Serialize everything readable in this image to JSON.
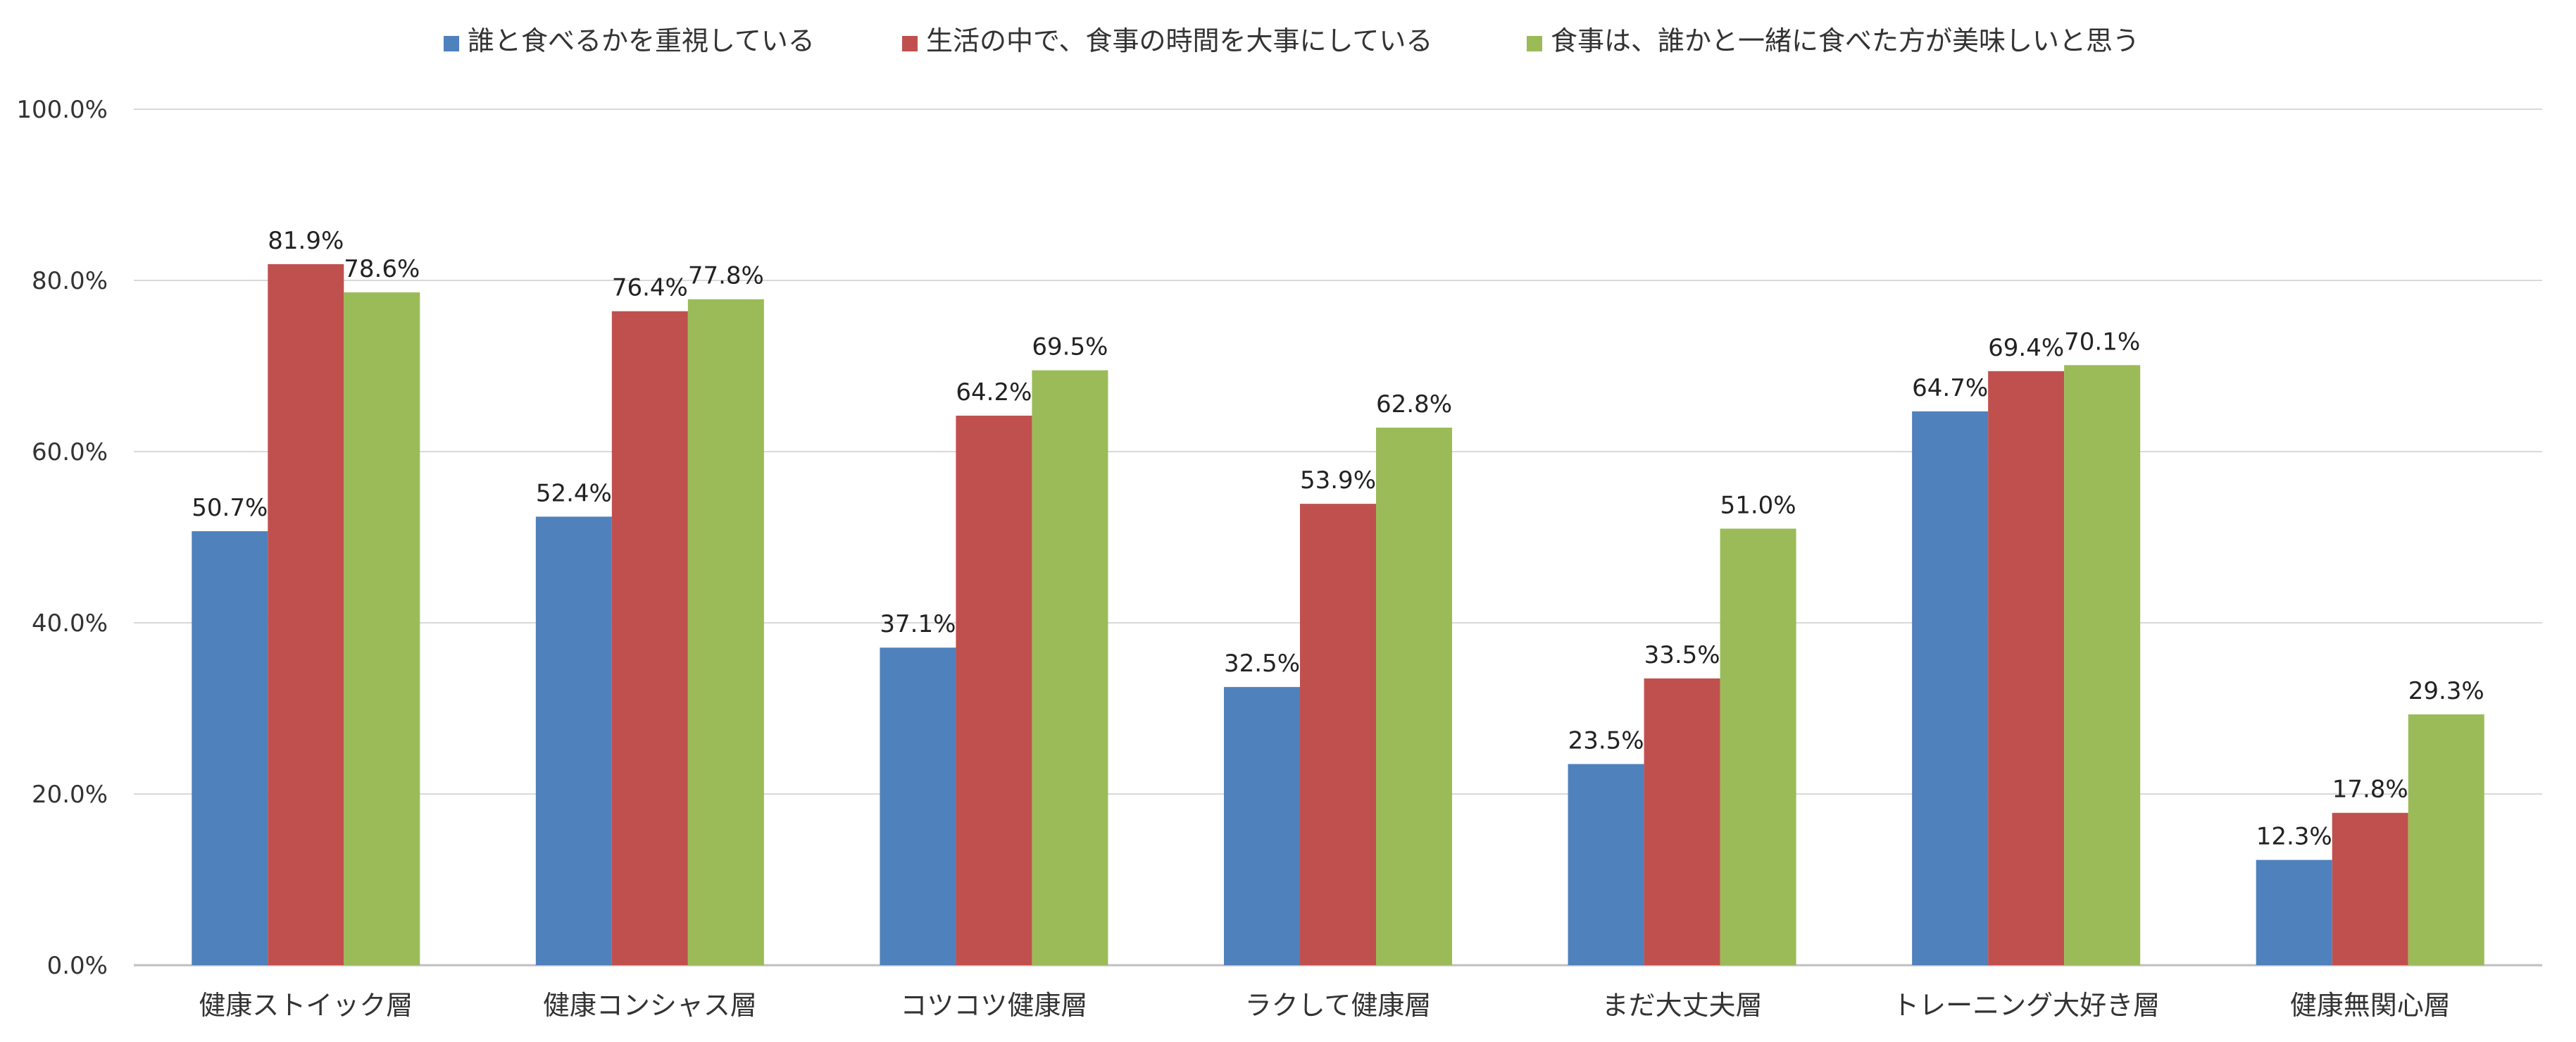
{
  "chart_data": {
    "type": "bar",
    "categories": [
      "健康ストイック層",
      "健康コンシャス層",
      "コツコツ健康層",
      "ラクして健康層",
      "まだ大丈夫層",
      "トレーニング大好き層",
      "健康無関心層"
    ],
    "series": [
      {
        "name": "誰と食べるかを重視している",
        "color": "#4F81BD",
        "values": [
          50.7,
          52.4,
          37.1,
          32.5,
          23.5,
          64.7,
          12.3
        ],
        "labels": [
          "50.7%",
          "52.4%",
          "37.1%",
          "32.5%",
          "23.5%",
          "64.7%",
          "12.3%"
        ]
      },
      {
        "name": "生活の中で、食事の時間を大事にしている",
        "color": "#C0504D",
        "values": [
          81.9,
          76.4,
          64.2,
          53.9,
          33.5,
          69.4,
          17.8
        ],
        "labels": [
          "81.9%",
          "76.4%",
          "64.2%",
          "53.9%",
          "33.5%",
          "69.4%",
          "17.8%"
        ]
      },
      {
        "name": "食事は、誰かと一緒に食べた方が美味しいと思う",
        "color": "#9BBB59",
        "values": [
          78.6,
          77.8,
          69.5,
          62.8,
          51.0,
          70.1,
          29.3
        ],
        "labels": [
          "78.6%",
          "77.8%",
          "69.5%",
          "62.8%",
          "51.0%",
          "70.1%",
          "29.3%"
        ]
      }
    ],
    "ylim": [
      0,
      100
    ],
    "yticks": [
      0,
      20,
      40,
      60,
      80,
      100
    ],
    "ytick_labels": [
      "0.0%",
      "20.0%",
      "40.0%",
      "60.0%",
      "80.0%",
      "100.0%"
    ],
    "title": "",
    "xlabel": "",
    "ylabel": "",
    "grid": true,
    "legend_position": "top-center",
    "gridline_color": "#D9D9D9",
    "axis_color": "#BFBFBF"
  }
}
